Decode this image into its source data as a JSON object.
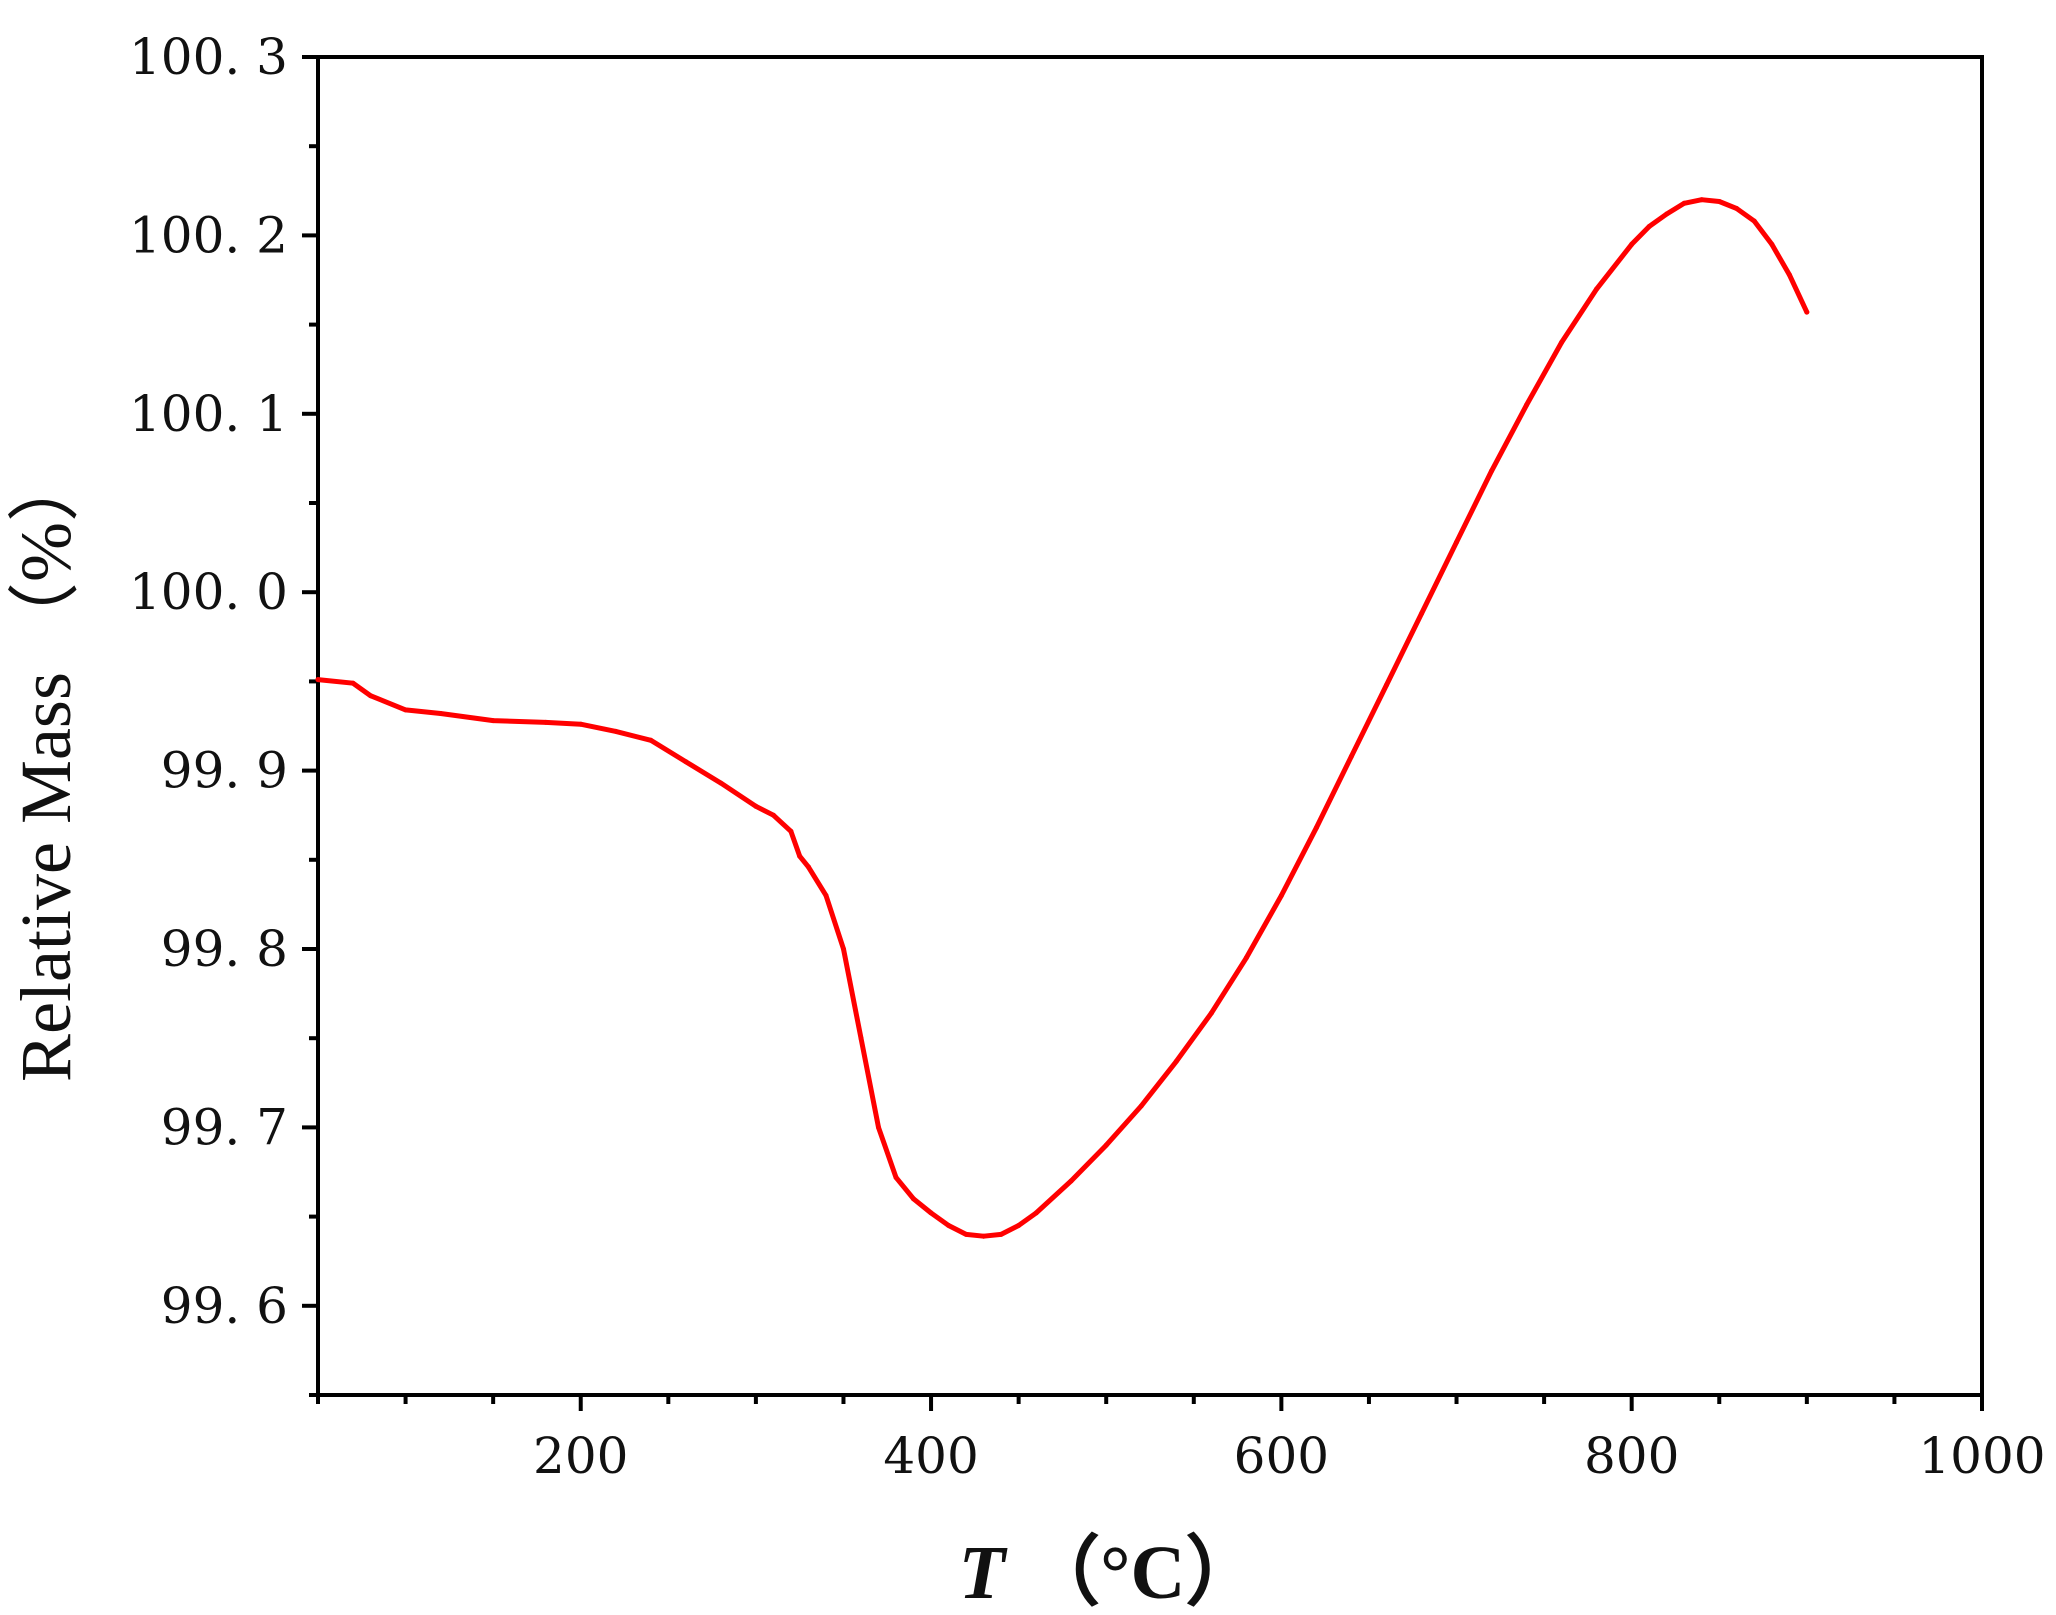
{
  "chart_data": {
    "type": "line",
    "title": "",
    "xlabel_symbol": "T",
    "xlabel_unit": "（°C）",
    "ylabel": "Relative Mass （%）",
    "xlim": [
      50,
      1000
    ],
    "ylim": [
      99.55,
      100.3
    ],
    "x_ticks": [
      200,
      400,
      600,
      800,
      1000
    ],
    "x_tick_labels": [
      "200",
      "400",
      "600",
      "800",
      "1000"
    ],
    "y_ticks": [
      99.6,
      99.7,
      99.8,
      99.9,
      100.0,
      100.1,
      100.2,
      100.3
    ],
    "y_tick_labels": [
      "99. 6",
      "99. 7",
      "99. 8",
      "99. 9",
      "100. 0",
      "100. 1",
      "100. 2",
      "100. 3"
    ],
    "x_minor_step": 50,
    "y_minor_step": 0.05,
    "grid": false,
    "legend": "none",
    "colors": {
      "line": "#ff0000",
      "axis": "#000000"
    },
    "series": [
      {
        "x": [
          50,
          70,
          80,
          100,
          120,
          150,
          180,
          200,
          220,
          240,
          260,
          280,
          300,
          310,
          320,
          325,
          330,
          340,
          350,
          360,
          370,
          380,
          390,
          400,
          410,
          420,
          430,
          440,
          450,
          460,
          480,
          500,
          520,
          540,
          560,
          580,
          600,
          620,
          640,
          660,
          680,
          700,
          720,
          740,
          760,
          780,
          800,
          810,
          820,
          830,
          840,
          850,
          860,
          870,
          880,
          890,
          900
        ],
        "y": [
          99.951,
          99.949,
          99.942,
          99.934,
          99.932,
          99.928,
          99.927,
          99.926,
          99.922,
          99.917,
          99.905,
          99.893,
          99.88,
          99.875,
          99.866,
          99.852,
          99.846,
          99.83,
          99.8,
          99.75,
          99.7,
          99.672,
          99.66,
          99.652,
          99.645,
          99.64,
          99.639,
          99.64,
          99.645,
          99.652,
          99.67,
          99.69,
          99.712,
          99.737,
          99.764,
          99.795,
          99.83,
          99.868,
          99.908,
          99.948,
          99.988,
          100.028,
          100.068,
          100.105,
          100.14,
          100.17,
          100.195,
          100.205,
          100.212,
          100.218,
          100.22,
          100.219,
          100.215,
          100.208,
          100.195,
          100.178,
          100.157
        ]
      }
    ]
  }
}
